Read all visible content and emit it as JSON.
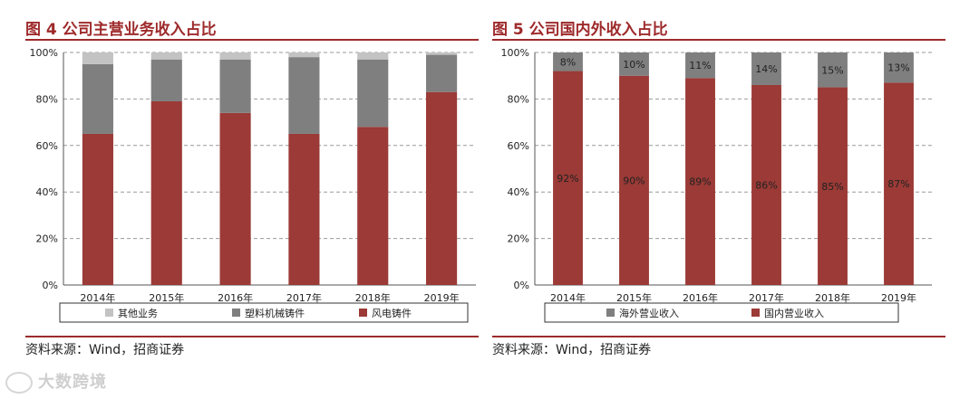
{
  "left": {
    "title": "图 4  公司主营业务收入占比",
    "source": "资料来源：Wind，招商证券"
  },
  "right": {
    "title": "图 5  公司国内外收入占比",
    "source": "资料来源：Wind，招商证券"
  },
  "watermark": "大数跨境",
  "colors": {
    "dark_red": "#9b3a36",
    "gray": "#7f7f7f",
    "light_gray": "#c3c3c3",
    "accent": "#9e2a2b"
  },
  "chart_data": [
    {
      "type": "bar",
      "stacked": true,
      "title": "图 4  公司主营业务收入占比",
      "categories": [
        "2014年",
        "2015年",
        "2016年",
        "2017年",
        "2018年",
        "2019年"
      ],
      "y_ticks": [
        "0%",
        "20%",
        "40%",
        "60%",
        "80%",
        "100%"
      ],
      "ylim": [
        0,
        100
      ],
      "grid": true,
      "legend_position": "bottom",
      "series": [
        {
          "name": "风电铸件",
          "color": "#9b3a36",
          "values": [
            65,
            79,
            74,
            65,
            68,
            83
          ]
        },
        {
          "name": "塑料机械铸件",
          "color": "#7f7f7f",
          "values": [
            30,
            18,
            23,
            33,
            29,
            16
          ]
        },
        {
          "name": "其他业务",
          "color": "#c3c3c3",
          "values": [
            5,
            3,
            3,
            2,
            3,
            1
          ]
        }
      ],
      "legend_order": [
        "其他业务",
        "塑料机械铸件",
        "风电铸件"
      ]
    },
    {
      "type": "bar",
      "stacked": true,
      "title": "图 5  公司国内外收入占比",
      "categories": [
        "2014年",
        "2015年",
        "2016年",
        "2017年",
        "2018年",
        "2019年"
      ],
      "y_ticks": [
        "0%",
        "20%",
        "40%",
        "60%",
        "80%",
        "100%"
      ],
      "ylim": [
        0,
        100
      ],
      "grid": true,
      "legend_position": "bottom",
      "series": [
        {
          "name": "国内营业收入",
          "color": "#9b3a36",
          "values": [
            92,
            90,
            89,
            86,
            85,
            87
          ],
          "labels": [
            "92%",
            "90%",
            "89%",
            "86%",
            "85%",
            "87%"
          ]
        },
        {
          "name": "海外营业收入",
          "color": "#7f7f7f",
          "values": [
            8,
            10,
            11,
            14,
            15,
            13
          ],
          "labels": [
            "8%",
            "10%",
            "11%",
            "14%",
            "15%",
            "13%"
          ]
        }
      ],
      "legend_order": [
        "海外营业收入",
        "国内营业收入"
      ]
    }
  ]
}
